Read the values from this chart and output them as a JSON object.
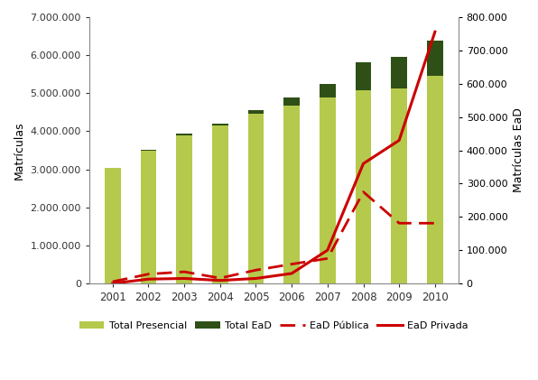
{
  "years": [
    2001,
    2002,
    2003,
    2004,
    2005,
    2006,
    2007,
    2008,
    2009,
    2010
  ],
  "total_presencial": [
    3030413,
    3479913,
    3887022,
    4163733,
    4453156,
    4676646,
    4880381,
    5080056,
    5115896,
    5449120
  ],
  "total_ead": [
    5359,
    40714,
    49911,
    25004,
    114642,
    207206,
    369766,
    727961,
    838125,
    930179
  ],
  "ead_publica": [
    5359,
    28000,
    35000,
    16000,
    40000,
    58000,
    75000,
    275000,
    181000,
    181000
  ],
  "ead_privada": [
    0,
    13000,
    15000,
    9000,
    15000,
    30000,
    100000,
    360000,
    430000,
    756000
  ],
  "color_presencial": "#b5c94c",
  "color_ead": "#2e5016",
  "color_line": "#cc0000",
  "ylabel_left": "Matrículas",
  "ylabel_right": "Matrículas EaD",
  "ylim_left": [
    0,
    7000000
  ],
  "ylim_right": [
    0,
    800000
  ],
  "yticks_left": [
    0,
    1000000,
    2000000,
    3000000,
    4000000,
    5000000,
    6000000,
    7000000
  ],
  "yticks_right": [
    0,
    100000,
    200000,
    300000,
    400000,
    500000,
    600000,
    700000,
    800000
  ],
  "legend_labels": [
    "Total Presencial",
    "Total EaD",
    "EaD Pública",
    "EaD Privada"
  ],
  "bg_color": "#ffffff"
}
